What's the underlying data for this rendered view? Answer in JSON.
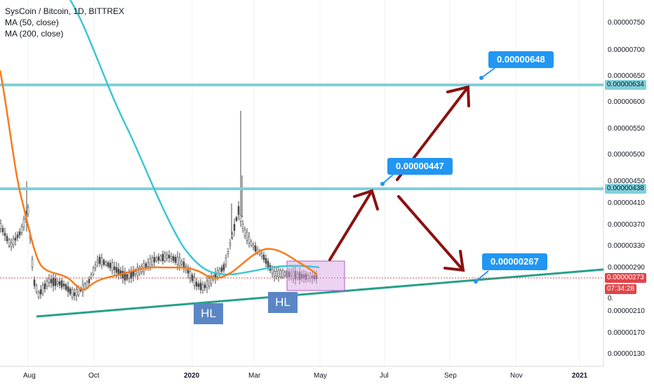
{
  "legend": {
    "title": "SysCoin / Bitcoin, 1D, BITTREX",
    "ma50": "MA (50, close)",
    "ma200": "MA (200, close)"
  },
  "colors": {
    "candle": "#4a4a4a",
    "ma50": "#f57c1f",
    "ma200": "#3ec6d2",
    "support_line": "#26a08a",
    "resistance": "#7fd0da",
    "arrows": "#8b1010",
    "callout": "#2196f3",
    "hl_box": "#5b86c5",
    "current_price": "#e0454a",
    "range_box": "#d9a8e6"
  },
  "price_axis": {
    "labels": [
      "0.00000750",
      "0.00000700",
      "0.00000650",
      "0.00000600",
      "0.00000550",
      "0.00000500",
      "0.00000450",
      "0.00000410",
      "0.00000370",
      "0.00000330",
      "0.00000290",
      "0.00000250",
      "0.00000210",
      "0.00000170",
      "0.00000130"
    ],
    "tag_634": "0.00000634",
    "tag_438": "0.00000438",
    "tag_273": "0.00000273",
    "countdown": "07:34:28",
    "partial_label": "0."
  },
  "time_axis": {
    "labels": [
      "Aug",
      "Oct",
      "2020",
      "Mar",
      "May",
      "Jul",
      "Sep",
      "Nov",
      "2021"
    ]
  },
  "callouts": {
    "top": "0.00000648",
    "mid": "0.00000447",
    "low": "0.00000267"
  },
  "hl_labels": [
    "HL",
    "HL"
  ],
  "chart_data": {
    "type": "line",
    "title": "SysCoin / Bitcoin, 1D, BITTREX",
    "x_range": [
      "2019-07",
      "2021-01"
    ],
    "y_range": [
      1.1e-06,
      8e-06
    ],
    "series": [
      {
        "name": "MA (50, close)",
        "values": [
          6.8e-06,
          4.2e-06,
          2.9e-06,
          2.3e-06,
          2.5e-06,
          2.8e-06,
          2.9e-06,
          2.86e-06,
          2.7e-06,
          2.9e-06,
          3.3e-06,
          2.9e-06,
          2.7e-06
        ]
      },
      {
        "name": "MA (200, close)",
        "values": [
          8e-06,
          6.2e-06,
          4.4e-06,
          3.4e-06,
          3e-06,
          2.8e-06,
          2.7e-06,
          2.8e-06,
          2.9e-06,
          2.9e-06
        ]
      }
    ],
    "horizontal_levels": [
      6.34e-06,
      4.38e-06
    ],
    "current_price": 2.73e-06,
    "annotations": [
      "0.00000648",
      "0.00000447",
      "0.00000267",
      "HL",
      "HL"
    ]
  }
}
